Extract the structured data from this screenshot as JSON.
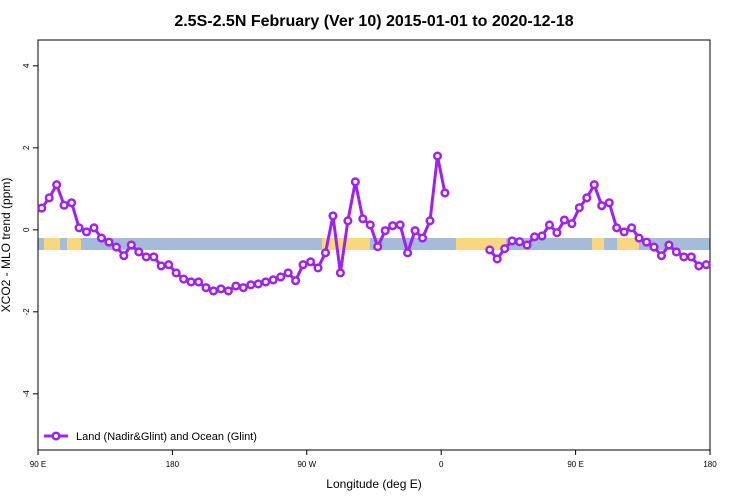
{
  "chart_data": {
    "type": "line",
    "title": "2.5S-2.5N February (Ver 10)   2015-01-01 to 2020-12-18",
    "x_label": "Longitude (deg E)",
    "y_label": "XCO2 - MLO trend (ppm)",
    "x": [
      92.5,
      97.5,
      102.5,
      107.5,
      112.5,
      117.5,
      122.5,
      127.5,
      132.5,
      137.5,
      142.5,
      147.5,
      152.5,
      157.5,
      162.5,
      167.5,
      172.5,
      177.5,
      182.5,
      187.5,
      192.5,
      197.5,
      202.5,
      207.5,
      212.5,
      217.5,
      222.5,
      227.5,
      232.5,
      237.5,
      242.5,
      247.5,
      252.5,
      257.5,
      262.5,
      267.5,
      272.5,
      277.5,
      282.5,
      287.5,
      292.5,
      297.5,
      302.5,
      307.5,
      312.5,
      317.5,
      322.5,
      327.5,
      332.5,
      337.5,
      342.5,
      347.5,
      352.5,
      357.5,
      362.5,
      367.5,
      372.5,
      377.5,
      382.5,
      387.5,
      392.5,
      397.5,
      402.5,
      407.5,
      412.5,
      417.5,
      422.5,
      427.5,
      432.5,
      437.5,
      442.5,
      447.5,
      452.5,
      457.5,
      462.5,
      467.5,
      472.5,
      477.5,
      482.5,
      487.5,
      492.5,
      497.5,
      502.5,
      507.5,
      512.5,
      517.5,
      522.5,
      527.5,
      532.5,
      537.5
    ],
    "series": [
      {
        "name": "Land (Nadir&Glint) and Ocean (Glint)",
        "color": "#a020f0",
        "values": [
          0.53,
          0.78,
          1.1,
          0.6,
          0.66,
          0.05,
          -0.05,
          0.05,
          -0.2,
          -0.3,
          -0.42,
          -0.63,
          -0.37,
          -0.54,
          -0.66,
          -0.66,
          -0.88,
          -0.85,
          -1.05,
          -1.2,
          -1.27,
          -1.27,
          -1.41,
          -1.49,
          -1.44,
          -1.49,
          -1.37,
          -1.41,
          -1.34,
          -1.32,
          -1.27,
          -1.22,
          -1.15,
          -1.05,
          -1.24,
          -0.85,
          -0.78,
          -0.93,
          -0.56,
          0.34,
          -1.05,
          0.22,
          1.17,
          0.27,
          0.12,
          -0.41,
          -0.02,
          0.1,
          0.12,
          -0.56,
          -0.02,
          -0.2,
          0.22,
          1.8,
          0.9,
          null,
          null,
          null,
          null,
          null,
          -0.49,
          -0.71,
          -0.46,
          -0.27,
          -0.29,
          -0.37,
          -0.17,
          -0.15,
          0.12,
          -0.07,
          0.24,
          0.15,
          0.54,
          0.78,
          1.1,
          0.59,
          0.66,
          0.05,
          -0.05,
          0.05,
          -0.2,
          -0.3,
          -0.42,
          -0.63,
          -0.37,
          -0.54,
          -0.66,
          -0.66,
          -0.88,
          -0.85
        ]
      }
    ],
    "xlim": [
      90,
      540
    ],
    "xticks": [
      {
        "value": 90,
        "label": "90 E"
      },
      180,
      {
        "value": 270,
        "label": "90 W"
      },
      {
        "value": 360,
        "label": "0"
      },
      {
        "value": 450,
        "label": "90 E"
      },
      {
        "value": 540,
        "label": "180"
      }
    ],
    "ylim": [
      -5.37,
      4.63
    ],
    "yticks": [
      -4,
      -2,
      0,
      2,
      4
    ],
    "legend": "bottom-left"
  }
}
